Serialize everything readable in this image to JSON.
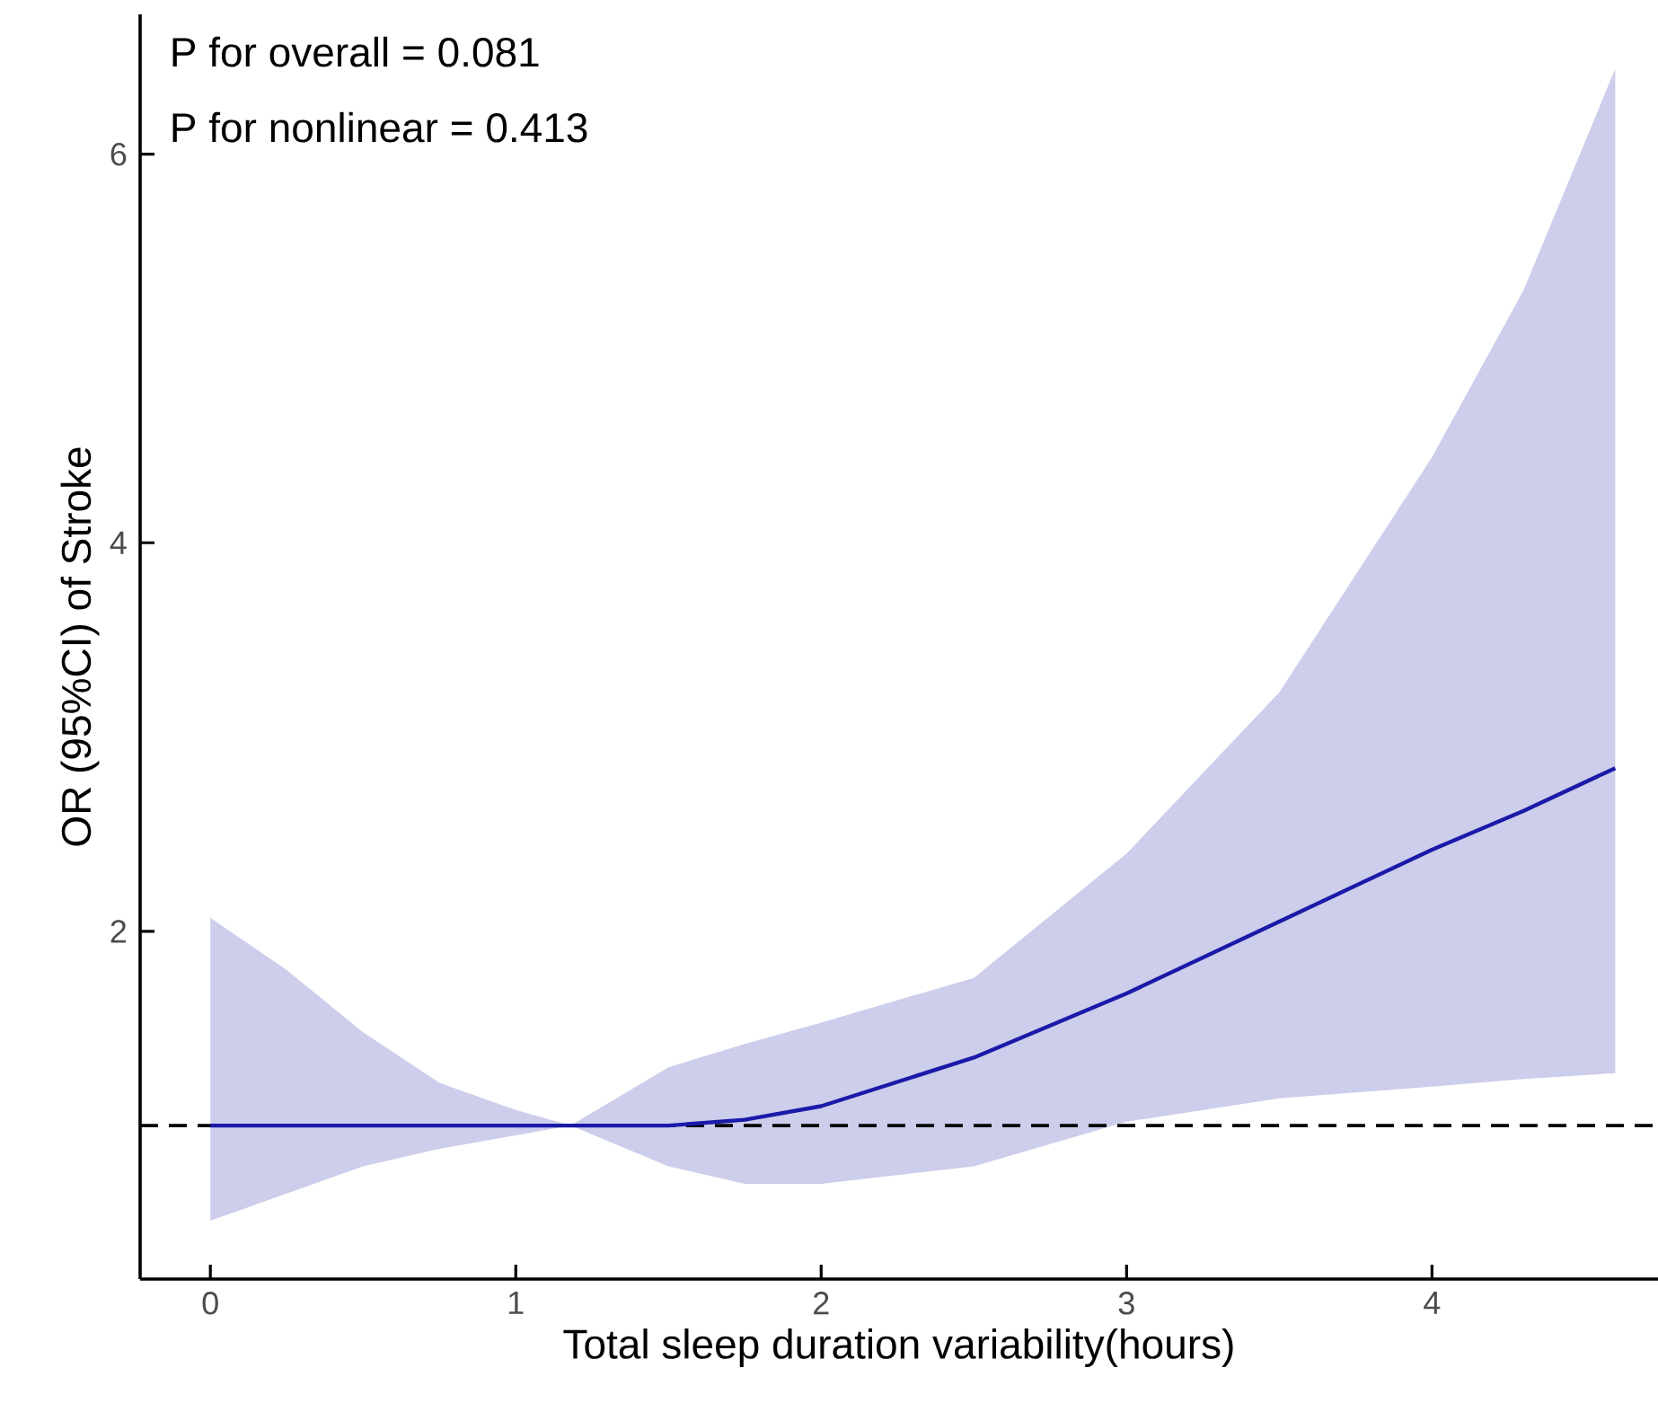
{
  "chart_data": {
    "type": "line",
    "xlabel": "Total sleep duration variability(hours)",
    "ylabel": "OR (95%CI) of Stroke",
    "annotations": [
      "P for overall = 0.081",
      "P for nonlinear = 0.413"
    ],
    "xlim": [
      -0.23,
      4.74
    ],
    "ylim": [
      0.21,
      6.72
    ],
    "xticks": [
      0,
      1,
      2,
      3,
      4
    ],
    "yticks": [
      2,
      4,
      6
    ],
    "grid": false,
    "series": [
      {
        "color": "#1a1aa8",
        "x": [
          0,
          0.25,
          0.5,
          0.75,
          1,
          1.18,
          1.5,
          1.75,
          2,
          2.5,
          3,
          3.5,
          4,
          4.3,
          4.6
        ],
        "values": [
          1.0,
          1.0,
          1.0,
          1.0,
          1.0,
          1.0,
          1.0,
          1.03,
          1.1,
          1.35,
          1.68,
          2.05,
          2.42,
          2.62,
          2.84
        ],
        "upper": [
          2.07,
          1.8,
          1.48,
          1.22,
          1.08,
          1.0,
          1.3,
          1.42,
          1.53,
          1.76,
          2.4,
          3.23,
          4.44,
          5.3,
          6.44
        ],
        "lower": [
          0.51,
          0.65,
          0.79,
          0.88,
          0.95,
          1.0,
          0.79,
          0.7,
          0.7,
          0.79,
          1.02,
          1.14,
          1.2,
          1.24,
          1.27
        ]
      }
    ],
    "ref_lines": [
      {
        "axis": "y",
        "value": 1,
        "color": "#000000",
        "line_style": "dashed"
      }
    ]
  }
}
